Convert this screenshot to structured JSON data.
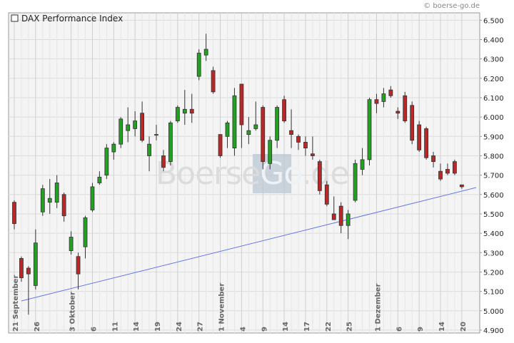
{
  "chart_data": {
    "type": "candlestick",
    "copyright": "© boerse-go.de",
    "watermark": [
      "Boerse",
      "Go",
      ".de"
    ],
    "categories": [
      "21 September",
      null,
      null,
      "26",
      null,
      null,
      null,
      null,
      "3 Oktober",
      null,
      null,
      "6",
      null,
      null,
      "11",
      null,
      null,
      "14",
      null,
      null,
      "19",
      null,
      null,
      "24",
      null,
      null,
      "27",
      null,
      null,
      "1 November",
      null,
      null,
      "4",
      null,
      null,
      "9",
      null,
      null,
      "14",
      null,
      null,
      "17",
      null,
      null,
      "22",
      null,
      null,
      "25",
      null,
      null,
      null,
      "1 Dezember",
      null,
      null,
      "6",
      null,
      null,
      "9",
      null,
      null,
      "14",
      null,
      null,
      "20"
    ],
    "series": [
      {
        "name": "DAX Performance Index",
        "up_color": "#22a022",
        "down_color": "#b82828",
        "open": [
          5.56,
          5.27,
          5.22,
          5.13,
          5.51,
          5.56,
          5.56,
          5.6,
          5.31,
          5.28,
          5.33,
          5.52,
          5.66,
          5.7,
          5.82,
          5.86,
          5.93,
          5.94,
          6.02,
          5.8,
          5.91,
          5.8,
          5.77,
          5.98,
          6.02,
          6.04,
          6.21,
          6.32,
          6.24,
          5.91,
          5.9,
          5.84,
          6.17,
          5.91,
          5.94,
          6.05,
          5.76,
          5.88,
          6.09,
          5.93,
          5.9,
          5.87,
          5.81,
          5.77,
          5.65,
          5.5,
          5.54,
          5.44,
          5.57,
          5.73,
          5.78,
          6.09,
          6.08,
          6.14,
          6.03,
          6.11,
          6.06,
          5.96,
          5.94,
          5.8,
          5.72,
          5.73,
          5.77,
          5.65
        ],
        "high": [
          5.57,
          5.28,
          5.23,
          5.42,
          5.65,
          5.68,
          5.7,
          5.61,
          5.41,
          5.3,
          5.49,
          5.66,
          5.72,
          5.86,
          5.87,
          6.0,
          6.05,
          6.03,
          6.08,
          5.9,
          5.96,
          5.83,
          5.98,
          6.06,
          6.14,
          6.12,
          6.35,
          6.43,
          6.26,
          5.91,
          5.98,
          6.15,
          6.17,
          6.0,
          6.08,
          6.06,
          5.9,
          6.06,
          6.11,
          6.04,
          5.91,
          5.9,
          5.9,
          5.78,
          5.67,
          5.59,
          5.56,
          5.52,
          5.78,
          5.84,
          6.1,
          6.12,
          6.15,
          6.16,
          6.05,
          6.13,
          6.08,
          5.98,
          5.95,
          5.82,
          5.76,
          5.76,
          5.78,
          5.65
        ],
        "low": [
          5.42,
          5.15,
          4.98,
          5.11,
          5.49,
          5.5,
          5.53,
          5.46,
          5.29,
          5.11,
          5.27,
          5.51,
          5.65,
          5.68,
          5.78,
          5.84,
          5.87,
          5.9,
          5.87,
          5.72,
          5.88,
          5.72,
          5.75,
          5.97,
          5.96,
          5.97,
          6.19,
          6.29,
          6.12,
          5.79,
          5.84,
          5.8,
          5.84,
          5.86,
          5.93,
          5.73,
          5.73,
          5.84,
          5.97,
          5.84,
          5.83,
          5.8,
          5.78,
          5.6,
          5.54,
          5.47,
          5.4,
          5.37,
          5.56,
          5.7,
          5.75,
          6.02,
          6.05,
          6.1,
          5.99,
          5.97,
          5.86,
          5.82,
          5.78,
          5.74,
          5.67,
          5.7,
          5.7,
          5.63
        ],
        "close": [
          5.45,
          5.17,
          5.19,
          5.35,
          5.63,
          5.58,
          5.66,
          5.49,
          5.38,
          5.19,
          5.48,
          5.64,
          5.69,
          5.84,
          5.86,
          5.99,
          5.96,
          5.98,
          5.88,
          5.86,
          5.91,
          5.74,
          5.97,
          6.05,
          6.04,
          6.02,
          6.33,
          6.35,
          6.13,
          5.8,
          5.97,
          6.11,
          5.96,
          5.93,
          5.96,
          5.77,
          5.88,
          6.05,
          5.98,
          5.91,
          5.87,
          5.84,
          5.8,
          5.62,
          5.55,
          5.47,
          5.44,
          5.5,
          5.76,
          5.78,
          6.09,
          6.07,
          6.12,
          6.11,
          6.02,
          5.98,
          5.88,
          5.83,
          5.79,
          5.77,
          5.68,
          5.71,
          5.71,
          5.64
        ]
      }
    ],
    "ylim": [
      4.885,
      6.538
    ],
    "yticks": [
      {
        "value": 4.9,
        "label": "4.900"
      },
      {
        "value": 5.0,
        "label": "5.000"
      },
      {
        "value": 5.1,
        "label": "5.100"
      },
      {
        "value": 5.2,
        "label": "5.200"
      },
      {
        "value": 5.3,
        "label": "5.300"
      },
      {
        "value": 5.4,
        "label": "5.400"
      },
      {
        "value": 5.5,
        "label": "5.500"
      },
      {
        "value": 5.6,
        "label": "5.600"
      },
      {
        "value": 5.7,
        "label": "5.700"
      },
      {
        "value": 5.8,
        "label": "5.800"
      },
      {
        "value": 5.9,
        "label": "5.900"
      },
      {
        "value": 6.0,
        "label": "6.000"
      },
      {
        "value": 6.1,
        "label": "6.100"
      },
      {
        "value": 6.2,
        "label": "6.200"
      },
      {
        "value": 6.3,
        "label": "6.300"
      },
      {
        "value": 6.4,
        "label": "6.400"
      },
      {
        "value": 6.5,
        "label": "6.500"
      }
    ],
    "grid": true
  }
}
